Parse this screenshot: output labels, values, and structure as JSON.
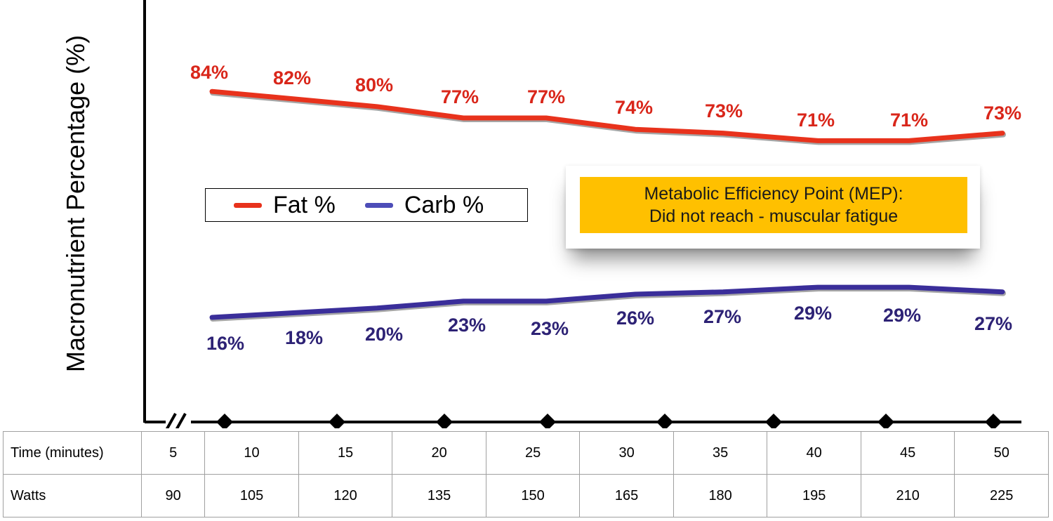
{
  "chart_data": {
    "type": "line",
    "title": "",
    "xlabel": "",
    "ylabel": "Macronutrient Percentage (%)",
    "categories": [
      "5",
      "10",
      "15",
      "20",
      "25",
      "30",
      "35",
      "40",
      "45",
      "50"
    ],
    "series": [
      {
        "name": "Fat %",
        "color": "#e8321c",
        "label_color": "#d9261a",
        "values": [
          84,
          82,
          80,
          77,
          77,
          74,
          73,
          71,
          71,
          73
        ],
        "labels": [
          "84%",
          "82%",
          "80%",
          "77%",
          "77%",
          "74%",
          "73%",
          "71%",
          "71%",
          "73%"
        ]
      },
      {
        "name": "Carb %",
        "color": "#3a2e9a",
        "label_color": "#2d2275",
        "values": [
          16,
          18,
          20,
          23,
          23,
          26,
          27,
          29,
          29,
          27
        ],
        "labels": [
          "16%",
          "18%",
          "20%",
          "23%",
          "23%",
          "26%",
          "27%",
          "29%",
          "29%",
          "27%"
        ]
      }
    ],
    "legend": [
      "Fat %",
      "Carb %"
    ],
    "axis_break": "//",
    "annotation": [
      "Metabolic Efficiency Point (MEP):",
      "Did not reach - muscular fatigue"
    ]
  },
  "callout": {
    "line1": "Metabolic Efficiency Point (MEP):",
    "line2": "Did not reach - muscular fatigue"
  },
  "legend": {
    "fat": "Fat %",
    "carb": "Carb %"
  },
  "table": {
    "rows": [
      {
        "label": "Time (minutes)",
        "values": [
          "5",
          "10",
          "15",
          "20",
          "25",
          "30",
          "35",
          "40",
          "45",
          "50"
        ]
      },
      {
        "label": "Watts",
        "values": [
          "90",
          "105",
          "120",
          "135",
          "150",
          "165",
          "180",
          "195",
          "210",
          "225"
        ]
      }
    ]
  }
}
